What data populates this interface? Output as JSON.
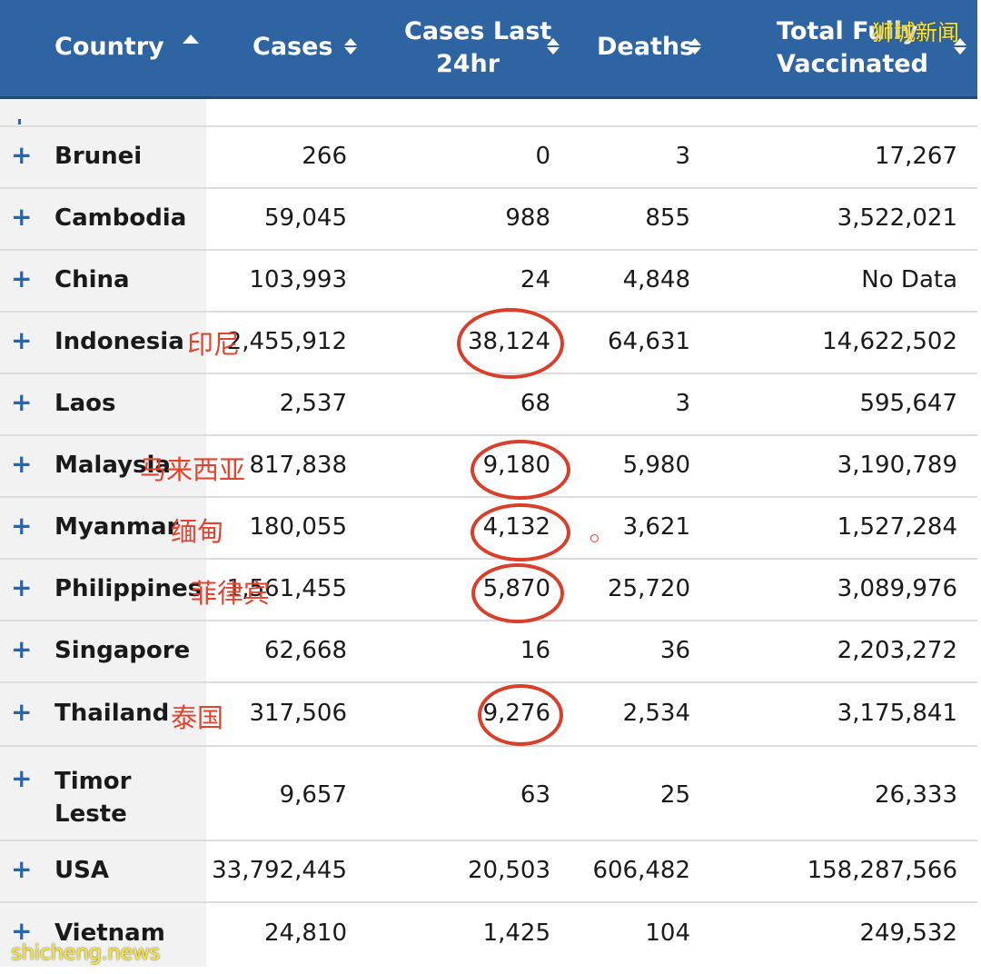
{
  "table": {
    "headers": {
      "country": "Country",
      "cases": "Cases",
      "cases_last_line1": "Cases Last",
      "cases_last_line2": "24hr",
      "deaths": "Deaths",
      "vax_line1": "Total Fully",
      "vax_line2": "Vaccinated"
    },
    "sort": {
      "column": "Country",
      "direction": "ascending"
    },
    "rows": [
      {
        "country": "Brunei",
        "cases": "266",
        "cases_last_24hr": "0",
        "deaths": "3",
        "total_fully_vaccinated": "17,267"
      },
      {
        "country": "Cambodia",
        "cases": "59,045",
        "cases_last_24hr": "988",
        "deaths": "855",
        "total_fully_vaccinated": "3,522,021"
      },
      {
        "country": "China",
        "cases": "103,993",
        "cases_last_24hr": "24",
        "deaths": "4,848",
        "total_fully_vaccinated": "No Data"
      },
      {
        "country": "Indonesia",
        "cases": "2,455,912",
        "cases_last_24hr": "38,124",
        "deaths": "64,631",
        "total_fully_vaccinated": "14,622,502"
      },
      {
        "country": "Laos",
        "cases": "2,537",
        "cases_last_24hr": "68",
        "deaths": "3",
        "total_fully_vaccinated": "595,647"
      },
      {
        "country": "Malaysia",
        "cases": "817,838",
        "cases_last_24hr": "9,180",
        "deaths": "5,980",
        "total_fully_vaccinated": "3,190,789"
      },
      {
        "country": "Myanmar",
        "cases": "180,055",
        "cases_last_24hr": "4,132",
        "deaths": "3,621",
        "total_fully_vaccinated": "1,527,284"
      },
      {
        "country": "Philippines",
        "cases": "1,561,455",
        "cases_last_24hr": "5,870",
        "deaths": "25,720",
        "total_fully_vaccinated": "3,089,976"
      },
      {
        "country": "Singapore",
        "cases": "62,668",
        "cases_last_24hr": "16",
        "deaths": "36",
        "total_fully_vaccinated": "2,203,272"
      },
      {
        "country": "Thailand",
        "cases": "317,506",
        "cases_last_24hr": "9,276",
        "deaths": "2,534",
        "total_fully_vaccinated": "3,175,841"
      },
      {
        "country_line1": "Timor",
        "country_line2": "Leste",
        "cases": "9,657",
        "cases_last_24hr": "63",
        "deaths": "25",
        "total_fully_vaccinated": "26,333"
      },
      {
        "country": "USA",
        "cases": "33,792,445",
        "cases_last_24hr": "20,503",
        "deaths": "606,482",
        "total_fully_vaccinated": "158,287,566"
      },
      {
        "country": "Vietnam",
        "cases": "24,810",
        "cases_last_24hr": "1,425",
        "deaths": "104",
        "total_fully_vaccinated": "249,532"
      }
    ],
    "expand_symbol": "+"
  },
  "annotations": {
    "indonesia": "印尼",
    "malaysia": "马来西亚",
    "myanmar": "缅甸",
    "philippines": "菲律宾",
    "thailand": "泰国"
  },
  "watermarks": {
    "top": "狮城新闻",
    "bottom": "shicheng.news"
  },
  "colors": {
    "header": "#2f64a3",
    "expand": "#2f64a3",
    "annotation": "#e0442f",
    "watermark": "#f5e642"
  }
}
